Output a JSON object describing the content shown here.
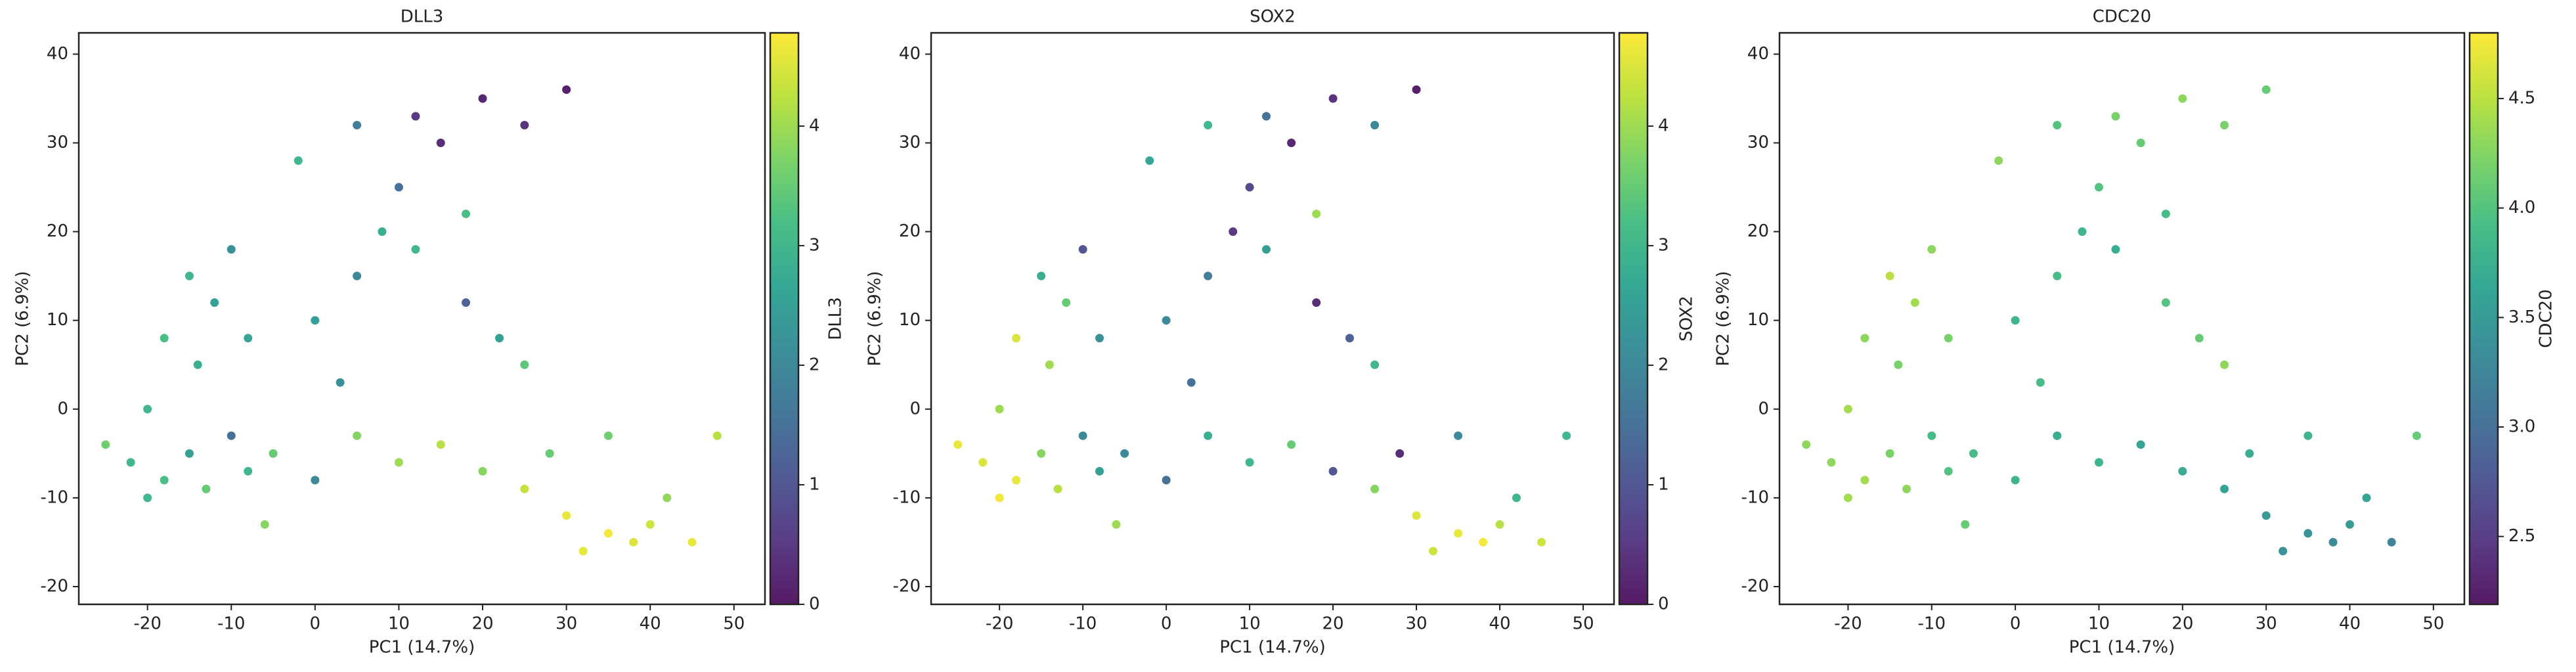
{
  "chart_data": [
    {
      "type": "scatter",
      "title": "DLL3",
      "xlabel": "PC1 (14.7%)",
      "ylabel": "PC2 (6.9%)",
      "colorbar_label": "DLL3",
      "xlim": [
        -28.2,
        53.7
      ],
      "ylim": [
        -22,
        42.4
      ],
      "xticks": [
        -20,
        -10,
        0,
        10,
        20,
        30,
        40,
        50
      ],
      "yticks": [
        -20,
        -10,
        0,
        10,
        20,
        30,
        40
      ],
      "clim": [
        0,
        4.78
      ],
      "cticks": [
        0,
        1,
        2,
        3,
        4
      ],
      "colormap": [
        "#440154",
        "#482878",
        "#3e4989",
        "#31688e",
        "#26828e",
        "#1f9e89",
        "#35b779",
        "#6ece58",
        "#b5de2b",
        "#fde725"
      ],
      "x": [
        -22,
        -18,
        -15,
        -13,
        -20,
        -10,
        -8,
        -14,
        -12,
        -15,
        -10,
        -18,
        -5,
        0,
        5,
        10,
        15,
        20,
        25,
        30,
        35,
        38,
        32,
        40,
        42,
        28,
        0,
        5,
        8,
        12,
        10,
        15,
        12,
        20,
        25,
        30,
        5,
        18,
        22,
        25,
        18,
        -2,
        3,
        -25,
        -6,
        45,
        35,
        48,
        -20,
        -8
      ],
      "y": [
        -6,
        -8,
        -5,
        -9,
        -10,
        -3,
        -7,
        5,
        12,
        15,
        18,
        8,
        -5,
        -8,
        -3,
        -6,
        -4,
        -7,
        -9,
        -12,
        -14,
        -15,
        -16,
        -13,
        -10,
        -5,
        10,
        15,
        20,
        18,
        25,
        30,
        33,
        35,
        32,
        36,
        32,
        22,
        8,
        5,
        12,
        28,
        3,
        -4,
        -13,
        -15,
        -3,
        -3,
        0,
        8
      ],
      "color_values": [
        3.0,
        3.2,
        2.5,
        3.5,
        3.0,
        1.5,
        3.0,
        2.8,
        2.5,
        3.0,
        2.2,
        3.2,
        3.5,
        2.0,
        3.8,
        4.0,
        4.2,
        3.8,
        4.3,
        4.6,
        4.7,
        4.5,
        4.6,
        4.4,
        3.9,
        3.5,
        2.5,
        2.0,
        2.8,
        3.0,
        1.5,
        0.3,
        0.5,
        0.2,
        0.4,
        0.1,
        1.8,
        3.2,
        2.5,
        3.4,
        1.2,
        3.0,
        2.2,
        3.6,
        3.8,
        4.6,
        3.6,
        4.2,
        3.0,
        2.6
      ]
    },
    {
      "type": "scatter",
      "title": "SOX2",
      "xlabel": "PC1 (14.7%)",
      "ylabel": "PC2 (6.9%)",
      "colorbar_label": "SOX2",
      "xlim": [
        -28.2,
        53.7
      ],
      "ylim": [
        -22,
        42.4
      ],
      "xticks": [
        -20,
        -10,
        0,
        10,
        20,
        30,
        40,
        50
      ],
      "yticks": [
        -20,
        -10,
        0,
        10,
        20,
        30,
        40
      ],
      "clim": [
        0,
        4.78
      ],
      "cticks": [
        0,
        1,
        2,
        3,
        4
      ],
      "colormap": [
        "#440154",
        "#482878",
        "#3e4989",
        "#31688e",
        "#26828e",
        "#1f9e89",
        "#35b779",
        "#6ece58",
        "#b5de2b",
        "#fde725"
      ],
      "x": [
        -22,
        -18,
        -15,
        -13,
        -20,
        -10,
        -8,
        -14,
        -12,
        -15,
        -10,
        -18,
        -5,
        0,
        5,
        10,
        15,
        20,
        25,
        30,
        35,
        38,
        32,
        40,
        42,
        28,
        0,
        5,
        8,
        12,
        10,
        15,
        12,
        20,
        25,
        30,
        5,
        18,
        22,
        25,
        18,
        -2,
        3,
        -25,
        -6,
        45,
        35,
        48,
        -20,
        -8
      ],
      "y": [
        -6,
        -8,
        -5,
        -9,
        -10,
        -3,
        -7,
        5,
        12,
        15,
        18,
        8,
        -5,
        -8,
        -3,
        -6,
        -4,
        -7,
        -9,
        -12,
        -14,
        -15,
        -16,
        -13,
        -10,
        -5,
        10,
        15,
        20,
        18,
        25,
        30,
        33,
        35,
        32,
        36,
        32,
        22,
        8,
        5,
        12,
        28,
        3,
        -4,
        -13,
        -15,
        -3,
        -3,
        0,
        8
      ],
      "color_values": [
        4.5,
        4.6,
        3.8,
        4.2,
        4.7,
        2.0,
        2.5,
        4.0,
        3.5,
        2.8,
        1.0,
        4.5,
        2.0,
        1.5,
        2.8,
        3.0,
        3.5,
        1.0,
        3.8,
        4.5,
        4.6,
        4.7,
        4.4,
        4.2,
        3.0,
        0.3,
        2.0,
        1.8,
        0.5,
        2.5,
        0.8,
        0.2,
        1.5,
        0.4,
        2.0,
        0.1,
        3.0,
        4.0,
        1.2,
        3.0,
        0.3,
        2.6,
        1.5,
        4.6,
        4.0,
        4.4,
        2.0,
        3.0,
        4.0,
        2.2
      ]
    },
    {
      "type": "scatter",
      "title": "CDC20",
      "xlabel": "PC1 (14.7%)",
      "ylabel": "PC2 (6.9%)",
      "colorbar_label": "CDC20",
      "xlim": [
        -28.2,
        53.7
      ],
      "ylim": [
        -22,
        42.4
      ],
      "xticks": [
        -20,
        -10,
        0,
        10,
        20,
        30,
        40,
        50
      ],
      "yticks": [
        -20,
        -10,
        0,
        10,
        20,
        30,
        40
      ],
      "clim": [
        2.19,
        4.8
      ],
      "cticks": [
        2.5,
        {
          "value": 3,
          "label": "3.0"
        },
        3.5,
        {
          "value": 4,
          "label": "4.0"
        },
        4.5
      ],
      "colormap": [
        "#440154",
        "#482878",
        "#3e4989",
        "#31688e",
        "#26828e",
        "#1f9e89",
        "#35b779",
        "#6ece58",
        "#b5de2b",
        "#fde725"
      ],
      "x": [
        -22,
        -18,
        -15,
        -13,
        -20,
        -10,
        -8,
        -14,
        -12,
        -15,
        -10,
        -18,
        -5,
        0,
        5,
        10,
        15,
        20,
        25,
        30,
        35,
        38,
        32,
        40,
        42,
        28,
        0,
        5,
        8,
        12,
        10,
        15,
        12,
        20,
        25,
        30,
        5,
        18,
        22,
        25,
        18,
        -2,
        3,
        -25,
        -6,
        45,
        35,
        48,
        -20,
        -8
      ],
      "y": [
        -6,
        -8,
        -5,
        -9,
        -10,
        -3,
        -7,
        5,
        12,
        15,
        18,
        8,
        -5,
        -8,
        -3,
        -6,
        -4,
        -7,
        -9,
        -12,
        -14,
        -15,
        -16,
        -13,
        -10,
        -5,
        10,
        15,
        20,
        18,
        25,
        30,
        33,
        35,
        32,
        36,
        32,
        22,
        8,
        5,
        12,
        28,
        3,
        -4,
        -13,
        -15,
        -3,
        -3,
        0,
        8
      ],
      "color_values": [
        4.3,
        4.4,
        4.2,
        4.3,
        4.4,
        3.9,
        4.0,
        4.2,
        4.4,
        4.5,
        4.3,
        4.3,
        3.9,
        3.8,
        3.7,
        3.8,
        3.6,
        3.7,
        3.6,
        3.5,
        3.4,
        3.3,
        3.4,
        3.5,
        3.6,
        3.7,
        3.8,
        3.9,
        3.8,
        3.7,
        4.0,
        4.1,
        4.2,
        4.3,
        4.2,
        4.1,
        4.0,
        3.9,
        4.1,
        4.3,
        4.0,
        4.3,
        3.9,
        4.3,
        4.1,
        3.2,
        3.8,
        4.1,
        4.4,
        4.2
      ]
    }
  ]
}
